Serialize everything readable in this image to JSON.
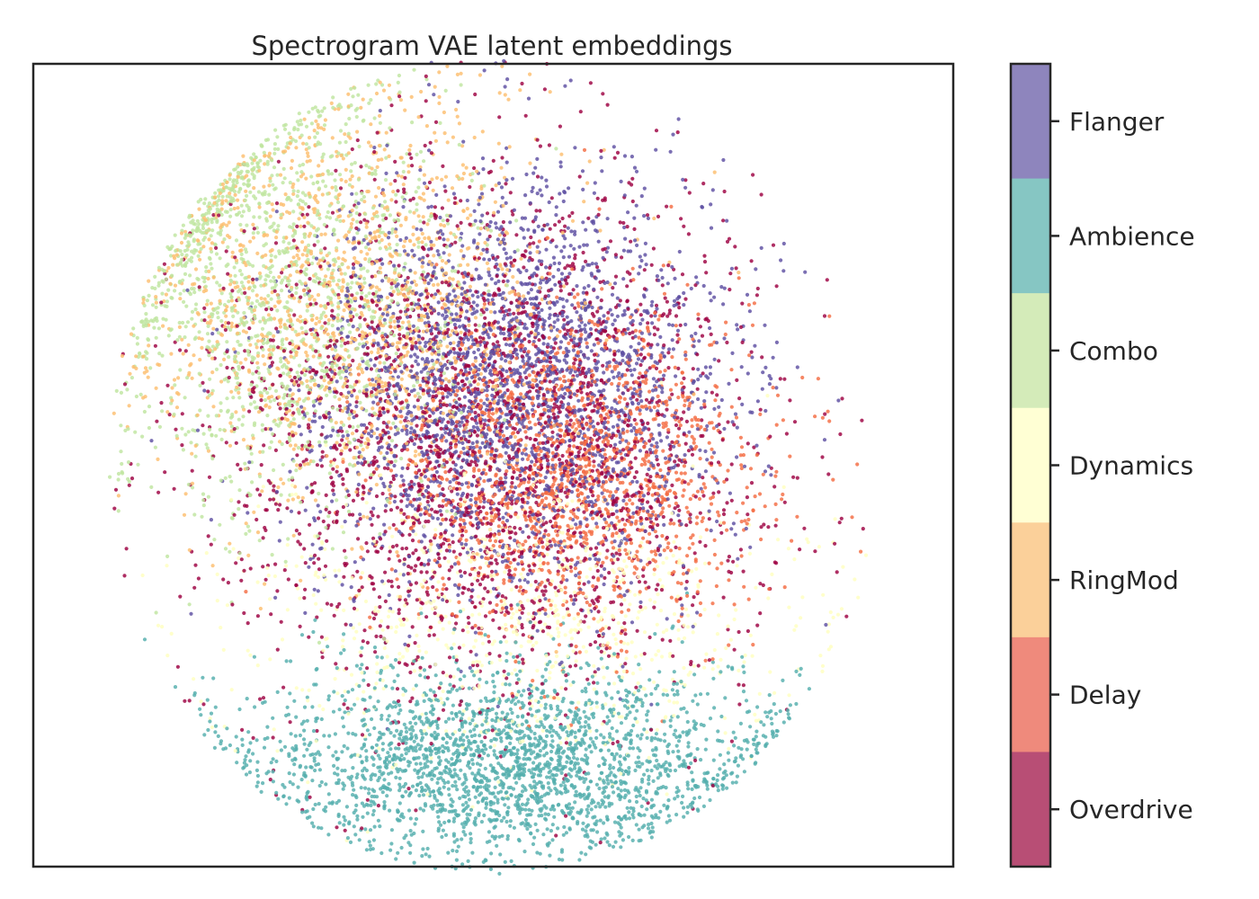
{
  "chart_data": {
    "type": "scatter",
    "title": "Spectrogram VAE latent embeddings",
    "xlabel": "",
    "ylabel": "",
    "xticks": [],
    "yticks": [],
    "grid": false,
    "colorbar": {
      "type": "discrete",
      "labels": [
        "Flanger",
        "Ambience",
        "Combo",
        "Dynamics",
        "RingMod",
        "Delay",
        "Overdrive"
      ],
      "colors": [
        "#8E85BD",
        "#86C6C3",
        "#D4EBB9",
        "#FFFFD4",
        "#FBD09A",
        "#EF8A7C",
        "#B84E75"
      ]
    },
    "series": [
      {
        "name": "Overdrive",
        "color": "#9E0142",
        "center": [
          -0.02,
          0.06
        ],
        "spread": [
          0.36,
          0.32
        ],
        "count": 2600
      },
      {
        "name": "Delay",
        "color": "#F46D43",
        "center": [
          0.24,
          -0.02
        ],
        "spread": [
          0.24,
          0.2
        ],
        "count": 1600
      },
      {
        "name": "RingMod",
        "color": "#FDBE6F",
        "center": [
          -0.38,
          0.4
        ],
        "spread": [
          0.28,
          0.26
        ],
        "count": 1500
      },
      {
        "name": "Dynamics",
        "color": "#FFFFBF",
        "center": [
          0.08,
          -0.38
        ],
        "spread": [
          0.4,
          0.18
        ],
        "count": 800
      },
      {
        "name": "Combo",
        "color": "#BFE5A0",
        "center": [
          -0.58,
          0.42
        ],
        "spread": [
          0.24,
          0.28
        ],
        "count": 1500
      },
      {
        "name": "Ambience",
        "color": "#54AEAD",
        "center": [
          0.04,
          -0.74
        ],
        "spread": [
          0.34,
          0.12
        ],
        "count": 2400
      },
      {
        "name": "Flanger",
        "color": "#5E4FA2",
        "center": [
          0.06,
          0.2
        ],
        "spread": [
          0.27,
          0.25
        ],
        "count": 2600
      }
    ]
  }
}
